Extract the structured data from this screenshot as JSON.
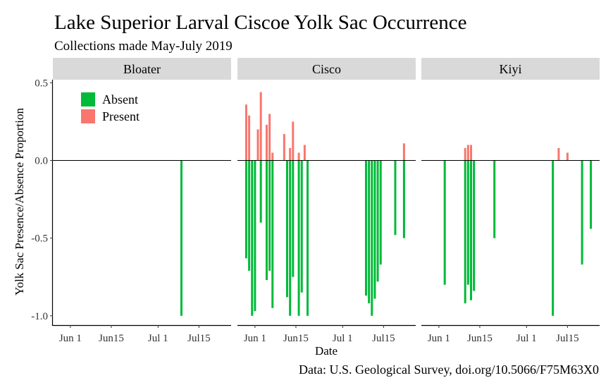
{
  "chart_data": {
    "type": "bar",
    "title": "Lake Superior Larval Ciscoe Yolk Sac Occurrence",
    "subtitle": "Collections made May-July 2019",
    "caption": "Data: U.S. Geological Survey, doi.org/10.5066/F75M63X0",
    "xlabel": "Date",
    "ylabel": "Yolk Sac Presence/Absence Proportion",
    "x_tick_labels": [
      "Jun 1",
      "Jun15",
      "Jul 1",
      "Jul15"
    ],
    "x_tick_dates": [
      "2019-06-01",
      "2019-06-15",
      "2019-07-01",
      "2019-07-15"
    ],
    "xlim": [
      "2019-05-26",
      "2019-07-26"
    ],
    "y_ticks": [
      0.5,
      0.0,
      -0.5,
      -1.0
    ],
    "y_tick_labels": [
      "0.5",
      "0.0",
      "-0.5",
      "-1.0"
    ],
    "ylim": [
      -1.06,
      0.52
    ],
    "legend": {
      "position": "top-left",
      "entries": [
        {
          "label": "Absent",
          "color": "#00BA38"
        },
        {
          "label": "Present",
          "color": "#F8766D"
        }
      ]
    },
    "grid": false,
    "colors": {
      "absent": "#00BA38",
      "present": "#F8766D",
      "strip": "#D9D9D9"
    },
    "panels": [
      {
        "name": "Bloater",
        "series": [
          {
            "name": "Absent",
            "points": [
              {
                "x": "2019-07-09",
                "y": -1.0
              }
            ]
          },
          {
            "name": "Present",
            "points": []
          }
        ]
      },
      {
        "name": "Cisco",
        "series": [
          {
            "name": "Absent",
            "points": [
              {
                "x": "2019-05-29",
                "y": -0.63
              },
              {
                "x": "2019-05-30",
                "y": -0.71
              },
              {
                "x": "2019-05-31",
                "y": -1.0
              },
              {
                "x": "2019-06-01",
                "y": -0.97
              },
              {
                "x": "2019-06-03",
                "y": -0.4
              },
              {
                "x": "2019-06-05",
                "y": -0.77
              },
              {
                "x": "2019-06-06",
                "y": -0.71
              },
              {
                "x": "2019-06-07",
                "y": -0.95
              },
              {
                "x": "2019-06-12",
                "y": -0.88
              },
              {
                "x": "2019-06-13",
                "y": -1.0
              },
              {
                "x": "2019-06-14",
                "y": -0.75
              },
              {
                "x": "2019-06-16",
                "y": -1.0
              },
              {
                "x": "2019-06-17",
                "y": -0.85
              },
              {
                "x": "2019-06-19",
                "y": -1.0
              },
              {
                "x": "2019-07-09",
                "y": -0.87
              },
              {
                "x": "2019-07-10",
                "y": -0.92
              },
              {
                "x": "2019-07-11",
                "y": -1.0
              },
              {
                "x": "2019-07-12",
                "y": -0.89
              },
              {
                "x": "2019-07-13",
                "y": -0.78
              },
              {
                "x": "2019-07-14",
                "y": -0.67
              },
              {
                "x": "2019-07-19",
                "y": -0.48
              },
              {
                "x": "2019-07-22",
                "y": -0.5
              }
            ]
          },
          {
            "name": "Present",
            "points": [
              {
                "x": "2019-05-29",
                "y": 0.36
              },
              {
                "x": "2019-05-30",
                "y": 0.29
              },
              {
                "x": "2019-06-02",
                "y": 0.2
              },
              {
                "x": "2019-06-03",
                "y": 0.44
              },
              {
                "x": "2019-06-05",
                "y": 0.23
              },
              {
                "x": "2019-06-06",
                "y": 0.3
              },
              {
                "x": "2019-06-07",
                "y": 0.05
              },
              {
                "x": "2019-06-11",
                "y": 0.17
              },
              {
                "x": "2019-06-13",
                "y": 0.08
              },
              {
                "x": "2019-06-14",
                "y": 0.25
              },
              {
                "x": "2019-06-16",
                "y": 0.05
              },
              {
                "x": "2019-06-18",
                "y": 0.1
              },
              {
                "x": "2019-07-22",
                "y": 0.11
              }
            ]
          }
        ]
      },
      {
        "name": "Kiyi",
        "series": [
          {
            "name": "Absent",
            "points": [
              {
                "x": "2019-06-03",
                "y": -0.8
              },
              {
                "x": "2019-06-10",
                "y": -0.92
              },
              {
                "x": "2019-06-11",
                "y": -0.8
              },
              {
                "x": "2019-06-12",
                "y": -0.9
              },
              {
                "x": "2019-06-13",
                "y": -0.84
              },
              {
                "x": "2019-06-20",
                "y": -0.5
              },
              {
                "x": "2019-07-10",
                "y": -1.0
              },
              {
                "x": "2019-07-20",
                "y": -0.67
              },
              {
                "x": "2019-07-23",
                "y": -0.44
              }
            ]
          },
          {
            "name": "Present",
            "points": [
              {
                "x": "2019-06-10",
                "y": 0.08
              },
              {
                "x": "2019-06-11",
                "y": 0.1
              },
              {
                "x": "2019-06-12",
                "y": 0.1
              },
              {
                "x": "2019-07-12",
                "y": 0.08
              },
              {
                "x": "2019-07-15",
                "y": 0.05
              }
            ]
          }
        ]
      }
    ]
  }
}
